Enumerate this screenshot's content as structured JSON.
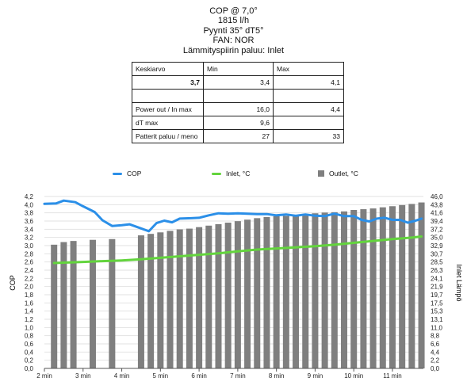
{
  "title": {
    "lines": [
      "COP @ 7,0°",
      "1815 l/h",
      "Pyynti 35° dT5°",
      "FAN: NOR",
      "Lämmityspiirin paluu: Inlet"
    ]
  },
  "stats_table": {
    "rows": [
      [
        "Keskiarvo",
        "Min",
        "Max"
      ],
      [
        "3,7",
        "3,4",
        "4,1"
      ],
      [
        "",
        "",
        ""
      ],
      [
        "Power out / In max",
        "16,0",
        "4,4"
      ],
      [
        "dT max",
        "9,6",
        ""
      ],
      [
        "Patterit paluu / meno",
        "27",
        "33"
      ]
    ]
  },
  "chart_data": {
    "type": "bar",
    "legend": [
      {
        "name": "COP",
        "kind": "line",
        "color": "#2b8fe8"
      },
      {
        "name": "Inlet, °C",
        "kind": "line",
        "color": "#63d43d"
      },
      {
        "name": "Outlet, °C",
        "kind": "bar",
        "color": "#7f7f7f"
      }
    ],
    "ylabel": "COP",
    "y2label": "Inlet Lämpö",
    "ylim": [
      0,
      4.2
    ],
    "y2lim": [
      0,
      46.0
    ],
    "yticks": [
      "0,0",
      "0,2",
      "0,4",
      "0,6",
      "0,8",
      "1,0",
      "1,2",
      "1,4",
      "1,6",
      "1,8",
      "2,0",
      "2,2",
      "2,4",
      "2,6",
      "2,8",
      "3,0",
      "3,2",
      "3,4",
      "3,6",
      "3,8",
      "4,0",
      "4,2"
    ],
    "y2ticks": [
      "0,0",
      "2,2",
      "4,4",
      "6,6",
      "8,8",
      "11,0",
      "13,1",
      "15,3",
      "17,5",
      "19,7",
      "21,9",
      "24,1",
      "26,3",
      "28,5",
      "30,7",
      "32,9",
      "35,0",
      "37,2",
      "39,4",
      "41,6",
      "43,8",
      "46,0"
    ],
    "xlim": [
      2.0,
      11.8
    ],
    "xticks": [
      2,
      3,
      4,
      5,
      6,
      7,
      8,
      9,
      10,
      11
    ],
    "xticklabels": [
      "2 min",
      "3 min",
      "4 min",
      "5 min",
      "6 min",
      "7 min",
      "8 min",
      "9 min",
      "10 min",
      "11 min"
    ],
    "outlet": {
      "name": "Outlet, °C",
      "x": [
        2.25,
        2.5,
        2.75,
        3.25,
        3.75,
        4.5,
        4.75,
        5.0,
        5.25,
        5.5,
        5.75,
        6.0,
        6.25,
        6.5,
        6.75,
        7.0,
        7.25,
        7.5,
        7.75,
        8.0,
        8.25,
        8.5,
        8.75,
        9.0,
        9.25,
        9.5,
        9.75,
        10.0,
        10.25,
        10.5,
        10.75,
        11.0,
        11.25,
        11.5,
        11.75
      ],
      "values": [
        33.1,
        33.8,
        34.1,
        34.4,
        34.6,
        35.6,
        36.0,
        36.4,
        36.8,
        37.2,
        37.4,
        37.8,
        38.2,
        38.6,
        39.0,
        39.4,
        39.8,
        40.2,
        40.5,
        40.7,
        40.8,
        41.1,
        41.3,
        41.5,
        41.7,
        41.8,
        42.0,
        42.4,
        42.6,
        42.8,
        43.1,
        43.4,
        43.7,
        44.0,
        44.4
      ]
    },
    "cop": {
      "name": "COP",
      "x": [
        2.0,
        2.3,
        2.5,
        2.8,
        3.0,
        3.3,
        3.5,
        3.75,
        4.0,
        4.2,
        4.5,
        4.7,
        4.9,
        5.1,
        5.3,
        5.5,
        5.8,
        6.0,
        6.25,
        6.5,
        6.75,
        7.0,
        7.25,
        7.5,
        7.75,
        8.0,
        8.25,
        8.5,
        8.75,
        9.0,
        9.25,
        9.5,
        9.75,
        10.0,
        10.2,
        10.4,
        10.6,
        10.8,
        11.0,
        11.2,
        11.4,
        11.6,
        11.75
      ],
      "values": [
        4.02,
        4.03,
        4.1,
        4.06,
        3.96,
        3.82,
        3.62,
        3.48,
        3.5,
        3.52,
        3.42,
        3.35,
        3.55,
        3.61,
        3.57,
        3.66,
        3.67,
        3.68,
        3.74,
        3.79,
        3.78,
        3.79,
        3.78,
        3.77,
        3.77,
        3.74,
        3.76,
        3.73,
        3.76,
        3.73,
        3.72,
        3.78,
        3.72,
        3.72,
        3.63,
        3.59,
        3.66,
        3.68,
        3.63,
        3.63,
        3.56,
        3.61,
        3.66
      ]
    },
    "inlet": {
      "name": "Inlet, °C",
      "x": [
        2.25,
        2.5,
        3.0,
        3.5,
        4.0,
        4.5,
        5.0,
        5.5,
        6.0,
        6.5,
        7.0,
        7.5,
        8.0,
        8.5,
        9.0,
        9.5,
        10.0,
        10.5,
        11.0,
        11.5,
        11.75
      ],
      "values": [
        28.2,
        28.3,
        28.5,
        28.7,
        28.9,
        29.2,
        29.6,
        30.0,
        30.4,
        30.8,
        31.3,
        31.8,
        32.1,
        32.4,
        32.7,
        33.1,
        33.6,
        34.1,
        34.6,
        35.0,
        35.3
      ]
    }
  }
}
